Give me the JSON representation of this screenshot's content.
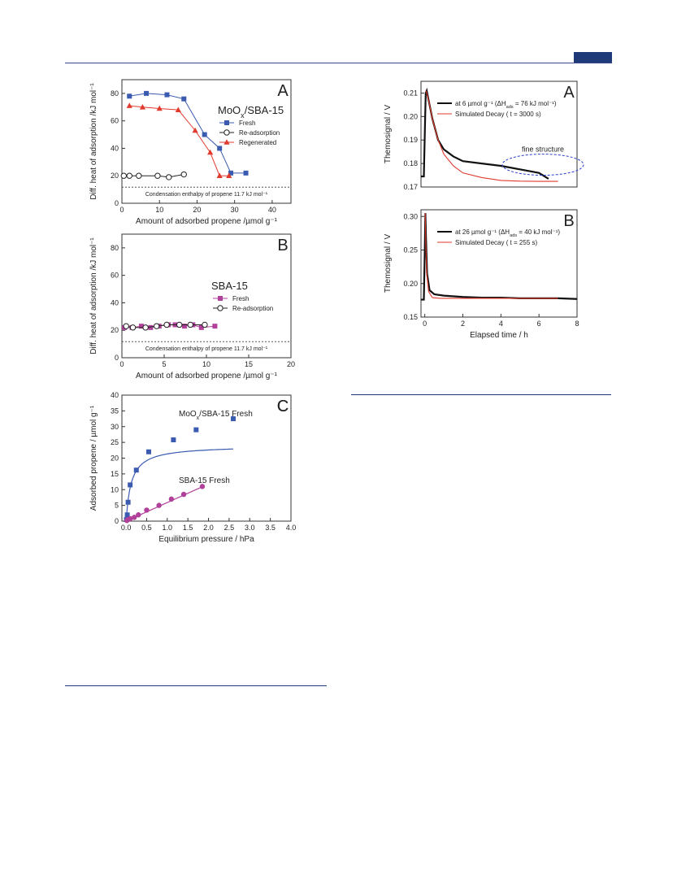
{
  "chart_data": [
    {
      "id": "A",
      "type": "line",
      "panel_letter": "A",
      "title": "MoO<sub>x</sub>/SBA-15",
      "xlabel": "Amount of adsorbed propene /µmol g⁻¹",
      "ylabel": "Diff. heat of adsorption /kJ mol⁻¹",
      "xlim": [
        0,
        45
      ],
      "ylim": [
        0,
        90
      ],
      "xticks": [
        0,
        10,
        20,
        30,
        40
      ],
      "yticks": [
        0,
        20,
        40,
        60,
        80
      ],
      "ref_line": {
        "y": 11.7,
        "label": "Condensation enthalpy of propene 11.7 kJ mol⁻¹"
      },
      "legend_position": "right",
      "series": [
        {
          "name": "Fresh",
          "color": "#3a5bb0",
          "marker": "square",
          "x": [
            2,
            6.5,
            12,
            16.5,
            22,
            26,
            29,
            33
          ],
          "y": [
            78,
            80,
            79,
            76,
            50,
            40,
            22,
            22
          ]
        },
        {
          "name": "Re-adsorption",
          "color": "#222222",
          "marker": "circle-open",
          "x": [
            0.5,
            2,
            4.5,
            9.5,
            12.5,
            16.5
          ],
          "y": [
            20,
            20,
            20,
            20,
            19,
            21
          ]
        },
        {
          "name": "Regenerated",
          "color": "#e23a2e",
          "marker": "triangle",
          "x": [
            2,
            5.5,
            10,
            15,
            19.5,
            23.5,
            26,
            28.5
          ],
          "y": [
            71,
            70,
            69,
            68,
            53,
            37,
            20,
            20
          ]
        }
      ]
    },
    {
      "id": "B",
      "type": "line",
      "panel_letter": "B",
      "title": "SBA-15",
      "xlabel": "Amount of adsorbed propene /µmol g⁻¹",
      "ylabel": "Diff. heat of adsorption /kJ mol⁻¹",
      "xlim": [
        0,
        20
      ],
      "ylim": [
        0,
        90
      ],
      "xticks": [
        0,
        5,
        10,
        15,
        20
      ],
      "yticks": [
        0,
        20,
        40,
        60,
        80
      ],
      "ref_line": {
        "y": 11.7,
        "label": "Condensation enthalpy of propene 11.7 kJ mol⁻¹"
      },
      "legend_position": "right",
      "series": [
        {
          "name": "Fresh",
          "color": "#b0409a",
          "marker": "square",
          "x": [
            0.3,
            1.2,
            2.3,
            3.4,
            4.4,
            5.5,
            6.3,
            7.4,
            8.4,
            9.4,
            11
          ],
          "y": [
            22,
            22,
            23,
            22,
            23,
            24,
            24,
            23,
            24,
            22,
            23
          ]
        },
        {
          "name": "Re-adsorption",
          "color": "#222222",
          "marker": "circle-open",
          "x": [
            0.5,
            1.3,
            2.8,
            4.1,
            5.3,
            6.8,
            8.1,
            9.8
          ],
          "y": [
            23,
            22,
            22,
            23,
            24,
            24,
            24,
            24
          ]
        }
      ]
    },
    {
      "id": "C",
      "type": "scatter",
      "panel_letter": "C",
      "xlabel": "Equilibrium pressure / hPa",
      "ylabel": "Adsorbed propene / µmol g⁻¹",
      "xlim": [
        -0.1,
        4.0
      ],
      "ylim": [
        0,
        40
      ],
      "xticks": [
        0.0,
        0.5,
        1.0,
        1.5,
        2.0,
        2.5,
        3.0,
        3.5,
        4.0
      ],
      "xtick_labels": [
        "0.0",
        "0.5",
        "1.0",
        "1.5",
        "2.0",
        "2.5",
        "3.0",
        "3.5",
        "4.0"
      ],
      "yticks": [
        0,
        5,
        10,
        15,
        20,
        25,
        30,
        35,
        40
      ],
      "series": [
        {
          "name": "MoO<sub>x</sub>/SBA-15 Fresh",
          "color": "#3a5bb0",
          "marker": "square",
          "x": [
            0.01,
            0.03,
            0.05,
            0.1,
            0.25,
            0.55,
            1.15,
            1.7,
            2.6
          ],
          "y": [
            0.5,
            2,
            6,
            11.5,
            16.2,
            22,
            25.8,
            29,
            32.5
          ],
          "fit": {
            "kind": "langmuir",
            "qmax": 24,
            "K": 8,
            "xmax": 2.6
          }
        },
        {
          "name": "SBA-15 Fresh",
          "color": "#b0409a",
          "marker": "circle",
          "x": [
            0.02,
            0.05,
            0.1,
            0.2,
            0.3,
            0.5,
            0.8,
            1.1,
            1.4,
            1.85
          ],
          "y": [
            0.2,
            0.5,
            0.8,
            1.2,
            2,
            3.5,
            5,
            7,
            8.5,
            11
          ],
          "fit": {
            "kind": "linear",
            "slope": 5.9,
            "xmax": 1.85
          }
        }
      ]
    },
    {
      "id": "D",
      "type": "line",
      "panel_letter": "A",
      "xlabel": "",
      "ylabel": "Themosignal / V",
      "xlim": [
        -0.2,
        8
      ],
      "ylim": [
        0.17,
        0.215
      ],
      "yticks": [
        0.17,
        0.18,
        0.19,
        0.2,
        0.21
      ],
      "ytick_labels": [
        "0.17",
        "0.18",
        "0.19",
        "0.20",
        "0.21"
      ],
      "legend_position": "top-right",
      "annotation": "fine structure",
      "series": [
        {
          "name": "at 6 µmol g⁻¹  (ΔH<sub>ads</sub> = 76 kJ mol⁻¹)",
          "color": "#111111",
          "x": [
            -0.2,
            -0.05,
            0.02,
            0.05,
            0.1,
            0.2,
            0.4,
            0.7,
            1.0,
            1.5,
            2.0,
            3.0,
            4.0,
            5.0,
            6.0,
            6.5
          ],
          "y": [
            0.1745,
            0.1745,
            0.2,
            0.21,
            0.211,
            0.207,
            0.199,
            0.19,
            0.186,
            0.183,
            0.181,
            0.18,
            0.179,
            0.1775,
            0.176,
            0.1735
          ]
        },
        {
          "name": "Simulated Decay ( t = 3000 s)",
          "color": "#e23a2e",
          "x": [
            0.05,
            0.1,
            0.2,
            0.4,
            0.7,
            1.0,
            1.5,
            2.0,
            3.0,
            4.0,
            5.0,
            6.0,
            7.0
          ],
          "y": [
            0.211,
            0.21,
            0.207,
            0.199,
            0.19,
            0.184,
            0.179,
            0.176,
            0.174,
            0.1728,
            0.1725,
            0.1724,
            0.1724
          ]
        }
      ]
    },
    {
      "id": "E",
      "type": "line",
      "panel_letter": "B",
      "xlabel": "Elapsed time / h",
      "ylabel": "Themosignal / V",
      "xlim": [
        -0.2,
        8
      ],
      "ylim": [
        0.15,
        0.31
      ],
      "xticks": [
        0,
        2,
        4,
        6,
        8
      ],
      "yticks": [
        0.15,
        0.2,
        0.25,
        0.3
      ],
      "ytick_labels": [
        "0.15",
        "0.20",
        "0.25",
        "0.30"
      ],
      "legend_position": "top-right",
      "series": [
        {
          "name": "at 26 µmol g⁻¹ (ΔH<sub>ads</sub> = 40 kJ mol⁻¹)",
          "color": "#111111",
          "x": [
            -0.2,
            -0.05,
            0.0,
            0.03,
            0.06,
            0.12,
            0.25,
            0.5,
            1.0,
            2.0,
            3.0,
            4.0,
            5.0,
            6.0,
            7.0,
            8.0
          ],
          "y": [
            0.176,
            0.176,
            0.25,
            0.305,
            0.27,
            0.215,
            0.19,
            0.184,
            0.182,
            0.18,
            0.179,
            0.179,
            0.178,
            0.178,
            0.178,
            0.177
          ]
        },
        {
          "name": "Simulated Decay ( t = 255 s)",
          "color": "#e23a2e",
          "x": [
            0.02,
            0.05,
            0.1,
            0.2,
            0.4,
            0.8,
            1.5,
            3.0,
            5.0,
            7.0
          ],
          "y": [
            0.305,
            0.26,
            0.215,
            0.188,
            0.179,
            0.178,
            0.178,
            0.178,
            0.178,
            0.178
          ]
        }
      ]
    }
  ]
}
